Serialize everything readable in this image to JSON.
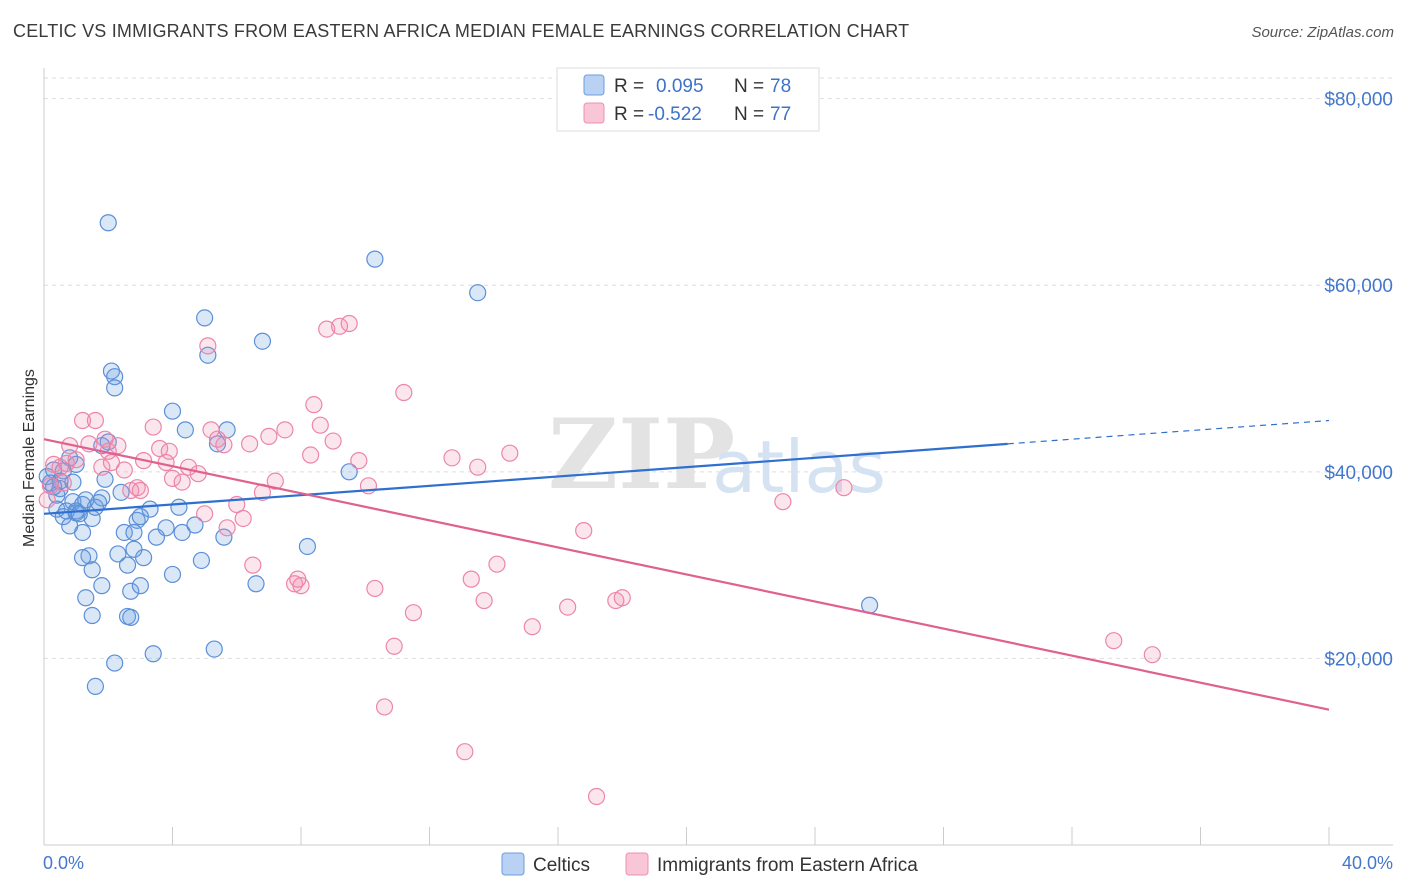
{
  "header": {
    "title": "CELTIC VS IMMIGRANTS FROM EASTERN AFRICA MEDIAN FEMALE EARNINGS CORRELATION CHART",
    "source": "Source: ZipAtlas.com"
  },
  "watermark": {
    "zip": "ZIP",
    "atlas": "atlas"
  },
  "legend": {
    "r_label": "R =",
    "n_label": "N =",
    "rows": [
      {
        "r_value": "0.095",
        "n_value": "78"
      },
      {
        "r_value": "-0.522",
        "n_value": "77"
      }
    ]
  },
  "chart_data": {
    "type": "scatter",
    "title": "CELTIC VS IMMIGRANTS FROM EASTERN AFRICA MEDIAN FEMALE EARNINGS CORRELATION CHART",
    "xlabel": "",
    "ylabel": "Median Female Earnings",
    "xlim": [
      0,
      40
    ],
    "ylim": [
      0,
      82000
    ],
    "x_tick_labels": [
      "0.0%",
      "40.0%"
    ],
    "y_ticks": [
      20000,
      40000,
      60000,
      80000
    ],
    "y_tick_labels": [
      "$20,000",
      "$40,000",
      "$60,000",
      "$80,000"
    ],
    "grid": true,
    "legend_position": "top-center",
    "colors": {
      "celtics": "#6c9fe0",
      "immigrants": "#f08fb0",
      "celtics_line": "#2f6fd0",
      "immigrants_line": "#e0608f"
    },
    "series": [
      {
        "name": "Celtics",
        "r": 0.095,
        "n": 78,
        "trend": {
          "x": [
            0,
            30
          ],
          "y": [
            35500,
            43000
          ],
          "dashed_to": [
            40,
            45500
          ]
        },
        "points": [
          [
            0.1,
            39500
          ],
          [
            0.2,
            38800
          ],
          [
            0.3,
            40200
          ],
          [
            0.4,
            37500
          ],
          [
            0.5,
            38200
          ],
          [
            0.4,
            36000
          ],
          [
            0.6,
            35200
          ],
          [
            0.8,
            34200
          ],
          [
            0.7,
            35800
          ],
          [
            0.9,
            36800
          ],
          [
            1.0,
            35600
          ],
          [
            0.9,
            38900
          ],
          [
            0.8,
            41500
          ],
          [
            1.0,
            40800
          ],
          [
            1.2,
            36500
          ],
          [
            1.5,
            35000
          ],
          [
            1.6,
            36200
          ],
          [
            1.8,
            37200
          ],
          [
            1.9,
            39200
          ],
          [
            2.0,
            43200
          ],
          [
            2.1,
            50800
          ],
          [
            2.2,
            50200
          ],
          [
            2.2,
            49000
          ],
          [
            1.8,
            42800
          ],
          [
            1.2,
            33500
          ],
          [
            1.4,
            31000
          ],
          [
            1.2,
            30800
          ],
          [
            1.5,
            29500
          ],
          [
            1.3,
            26500
          ],
          [
            1.8,
            27800
          ],
          [
            1.5,
            24600
          ],
          [
            2.3,
            31200
          ],
          [
            2.5,
            33500
          ],
          [
            2.6,
            30000
          ],
          [
            2.7,
            27200
          ],
          [
            2.6,
            24500
          ],
          [
            2.8,
            31700
          ],
          [
            2.9,
            34800
          ],
          [
            3.0,
            27800
          ],
          [
            3.1,
            30800
          ],
          [
            3.3,
            36000
          ],
          [
            3.4,
            20500
          ],
          [
            3.5,
            33000
          ],
          [
            3.8,
            34000
          ],
          [
            4.0,
            46500
          ],
          [
            4.0,
            29000
          ],
          [
            4.2,
            36200
          ],
          [
            4.3,
            33500
          ],
          [
            4.4,
            44500
          ],
          [
            4.7,
            34300
          ],
          [
            4.9,
            30500
          ],
          [
            5.0,
            56500
          ],
          [
            5.1,
            52500
          ],
          [
            5.3,
            21000
          ],
          [
            5.4,
            43000
          ],
          [
            5.6,
            33000
          ],
          [
            5.7,
            44500
          ],
          [
            6.6,
            28000
          ],
          [
            6.8,
            54000
          ],
          [
            8.2,
            32000
          ],
          [
            9.5,
            40000
          ],
          [
            10.3,
            62800
          ],
          [
            13.5,
            59200
          ],
          [
            25.7,
            25700
          ],
          [
            1.6,
            17000
          ],
          [
            2.2,
            19500
          ],
          [
            2.7,
            24400
          ],
          [
            2.8,
            33500
          ],
          [
            3.0,
            35200
          ],
          [
            1.3,
            37000
          ],
          [
            0.6,
            40100
          ],
          [
            1.0,
            35800
          ],
          [
            2.0,
            66700
          ],
          [
            0.5,
            39000
          ],
          [
            0.3,
            38400
          ],
          [
            1.1,
            35500
          ],
          [
            2.4,
            37800
          ],
          [
            1.7,
            36700
          ]
        ]
      },
      {
        "name": "Immigrants from Eastern Africa",
        "r": -0.522,
        "n": 77,
        "trend": {
          "x": [
            0,
            40
          ],
          "y": [
            43500,
            14500
          ]
        },
        "points": [
          [
            0.1,
            37000
          ],
          [
            0.2,
            38500
          ],
          [
            0.3,
            40800
          ],
          [
            0.5,
            40500
          ],
          [
            0.7,
            40900
          ],
          [
            0.8,
            42800
          ],
          [
            1.2,
            45500
          ],
          [
            1.6,
            45500
          ],
          [
            1.4,
            43000
          ],
          [
            1.8,
            40500
          ],
          [
            1.9,
            43500
          ],
          [
            2.1,
            41000
          ],
          [
            2.3,
            42800
          ],
          [
            2.5,
            40200
          ],
          [
            2.7,
            38000
          ],
          [
            2.9,
            38300
          ],
          [
            3.1,
            41200
          ],
          [
            3.4,
            44800
          ],
          [
            3.6,
            42500
          ],
          [
            3.8,
            41000
          ],
          [
            3.9,
            42200
          ],
          [
            4.0,
            39300
          ],
          [
            4.3,
            38900
          ],
          [
            4.5,
            40500
          ],
          [
            4.8,
            39800
          ],
          [
            5.0,
            35500
          ],
          [
            5.2,
            44500
          ],
          [
            5.4,
            43500
          ],
          [
            5.6,
            42900
          ],
          [
            5.7,
            34000
          ],
          [
            6.0,
            36500
          ],
          [
            6.2,
            35000
          ],
          [
            6.5,
            30000
          ],
          [
            6.8,
            37800
          ],
          [
            7.0,
            43800
          ],
          [
            7.2,
            39000
          ],
          [
            7.5,
            44500
          ],
          [
            7.8,
            28000
          ],
          [
            8.0,
            27800
          ],
          [
            8.3,
            41800
          ],
          [
            8.4,
            47200
          ],
          [
            8.6,
            45000
          ],
          [
            8.8,
            55300
          ],
          [
            9.2,
            55600
          ],
          [
            9.5,
            55900
          ],
          [
            9.8,
            41200
          ],
          [
            10.1,
            38500
          ],
          [
            10.3,
            27500
          ],
          [
            10.6,
            14800
          ],
          [
            10.9,
            21300
          ],
          [
            11.2,
            48500
          ],
          [
            11.5,
            24900
          ],
          [
            12.7,
            41500
          ],
          [
            13.1,
            10000
          ],
          [
            13.3,
            28500
          ],
          [
            13.5,
            40500
          ],
          [
            13.7,
            26200
          ],
          [
            14.1,
            30100
          ],
          [
            14.5,
            42000
          ],
          [
            15.2,
            23400
          ],
          [
            16.3,
            25500
          ],
          [
            16.8,
            33700
          ],
          [
            17.2,
            5200
          ],
          [
            17.8,
            26200
          ],
          [
            18.0,
            26500
          ],
          [
            23.0,
            36800
          ],
          [
            24.9,
            38300
          ],
          [
            33.3,
            21900
          ],
          [
            34.5,
            20400
          ],
          [
            5.1,
            53500
          ],
          [
            9.0,
            43300
          ],
          [
            3.0,
            38000
          ],
          [
            6.4,
            43000
          ],
          [
            2.0,
            42200
          ],
          [
            1.0,
            41300
          ],
          [
            0.6,
            38800
          ],
          [
            7.9,
            28500
          ]
        ]
      }
    ]
  },
  "bottom_legend": {
    "items": [
      {
        "label": "Celtics"
      },
      {
        "label": "Immigrants from Eastern Africa"
      }
    ]
  }
}
